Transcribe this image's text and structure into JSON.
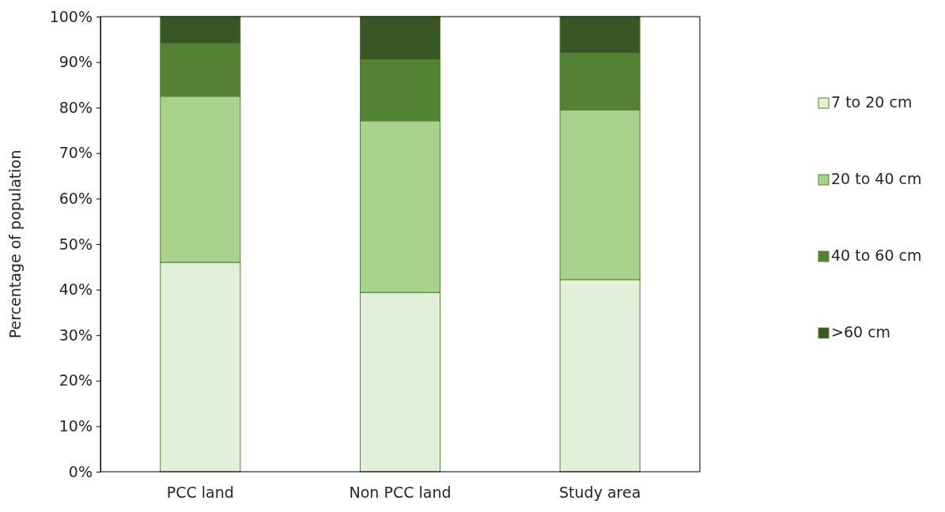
{
  "chart_data": {
    "type": "bar",
    "stacked": true,
    "ylabel": "Percentage of population",
    "categories": [
      "PCC land",
      "Non PCC land",
      "Study area"
    ],
    "series": [
      {
        "name": "7 to 20 cm",
        "color": "#e2efda",
        "values": [
          46.0,
          39.4,
          42.2
        ]
      },
      {
        "name": "20 to 40 cm",
        "color": "#a9d18e",
        "values": [
          36.5,
          37.7,
          37.3
        ]
      },
      {
        "name": "40 to 60 cm",
        "color": "#548235",
        "values": [
          11.6,
          13.4,
          12.5
        ]
      },
      {
        "name": ">60 cm",
        "color": "#375623",
        "values": [
          5.9,
          9.5,
          8.0
        ]
      }
    ],
    "ylim": [
      0,
      100
    ],
    "yticks": [
      {
        "value": 0,
        "label": "0%"
      },
      {
        "value": 10,
        "label": "10%"
      },
      {
        "value": 20,
        "label": "20%"
      },
      {
        "value": 30,
        "label": "30%"
      },
      {
        "value": 40,
        "label": "40%"
      },
      {
        "value": 50,
        "label": "50%"
      },
      {
        "value": 60,
        "label": "60%"
      },
      {
        "value": 70,
        "label": "70%"
      },
      {
        "value": 80,
        "label": "80%"
      },
      {
        "value": 90,
        "label": "90%"
      },
      {
        "value": 100,
        "label": "100%"
      }
    ],
    "grid": false,
    "legend": "right"
  }
}
